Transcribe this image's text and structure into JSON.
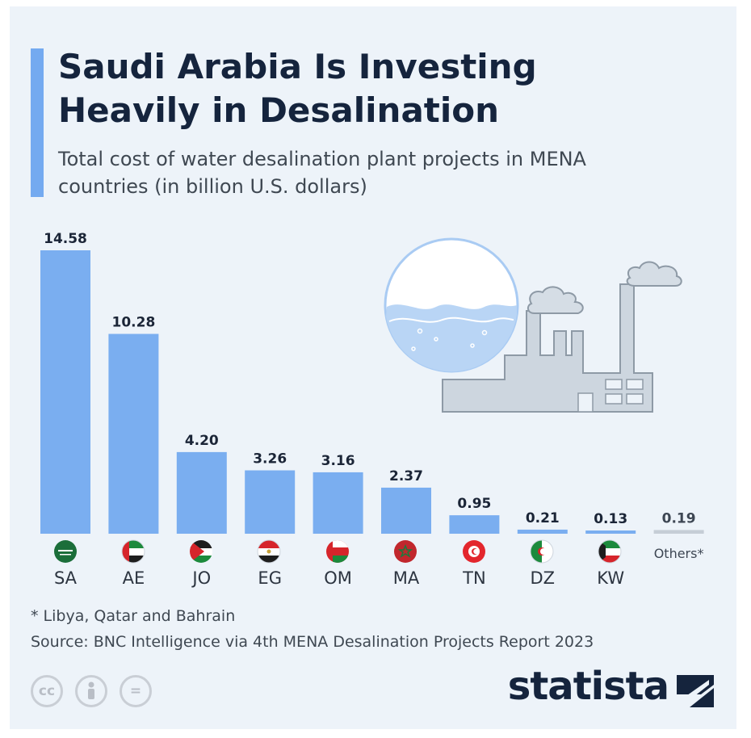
{
  "header": {
    "title": "Saudi Arabia Is Investing Heavily in Desalination",
    "subtitle": "Total cost of water desalination plant projects in MENA countries (in billion U.S. dollars)"
  },
  "chart_data": {
    "type": "bar",
    "categories": [
      "SA",
      "AE",
      "JO",
      "EG",
      "OM",
      "MA",
      "TN",
      "DZ",
      "KW",
      "Others*"
    ],
    "values": [
      14.58,
      10.28,
      4.2,
      3.26,
      3.16,
      2.37,
      0.95,
      0.21,
      0.13,
      0.19
    ],
    "value_labels": [
      "14.58",
      "10.28",
      "4.20",
      "3.26",
      "3.16",
      "2.37",
      "0.95",
      "0.21",
      "0.13",
      "0.19"
    ],
    "ylim": [
      0,
      14.58
    ],
    "grid": false,
    "legend": "none",
    "colors": {
      "bar": "#7aaef0",
      "others_bar": "#c5cdd6",
      "accent": "#74aaf0"
    }
  },
  "footnote": "* Libya, Qatar and Bahrain",
  "source": "Source: BNC Intelligence via 4th MENA Desalination Projects Report 2023",
  "footer": {
    "brand": "statista",
    "license_icons": [
      {
        "name": "cc-icon",
        "glyph": "cc"
      },
      {
        "name": "attribution-icon",
        "glyph": ""
      },
      {
        "name": "no-derivatives-icon",
        "glyph": "="
      }
    ]
  }
}
